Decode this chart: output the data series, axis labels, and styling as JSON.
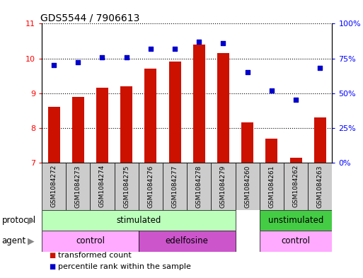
{
  "title": "GDS5544 / 7906613",
  "samples": [
    "GSM1084272",
    "GSM1084273",
    "GSM1084274",
    "GSM1084275",
    "GSM1084276",
    "GSM1084277",
    "GSM1084278",
    "GSM1084279",
    "GSM1084260",
    "GSM1084261",
    "GSM1084262",
    "GSM1084263"
  ],
  "bar_values": [
    8.6,
    8.9,
    9.15,
    9.2,
    9.7,
    9.9,
    10.4,
    10.15,
    8.15,
    7.7,
    7.15,
    8.3
  ],
  "scatter_values": [
    70,
    72,
    76,
    76,
    82,
    82,
    87,
    86,
    65,
    52,
    45,
    68
  ],
  "ylim_left": [
    7,
    11
  ],
  "ylim_right": [
    0,
    100
  ],
  "yticks_left": [
    7,
    8,
    9,
    10,
    11
  ],
  "yticks_right": [
    0,
    25,
    50,
    75,
    100
  ],
  "ytick_labels_right": [
    "0%",
    "25%",
    "50%",
    "75%",
    "100%"
  ],
  "bar_color": "#cc1100",
  "scatter_color": "#0000cc",
  "bar_width": 0.5,
  "sample_box_color": "#cccccc",
  "proto_stimulated_color": "#bbffbb",
  "proto_unstimulated_color": "#44cc44",
  "agent_control_color": "#ffaaff",
  "agent_edelfosine_color": "#cc55cc",
  "protocol_row_label": "protocol",
  "agent_row_label": "agent",
  "legend_bar_label": "transformed count",
  "legend_scatter_label": "percentile rank within the sample",
  "title_fontsize": 10,
  "tick_fontsize": 8,
  "annot_fontsize": 8.5,
  "legend_fontsize": 8
}
